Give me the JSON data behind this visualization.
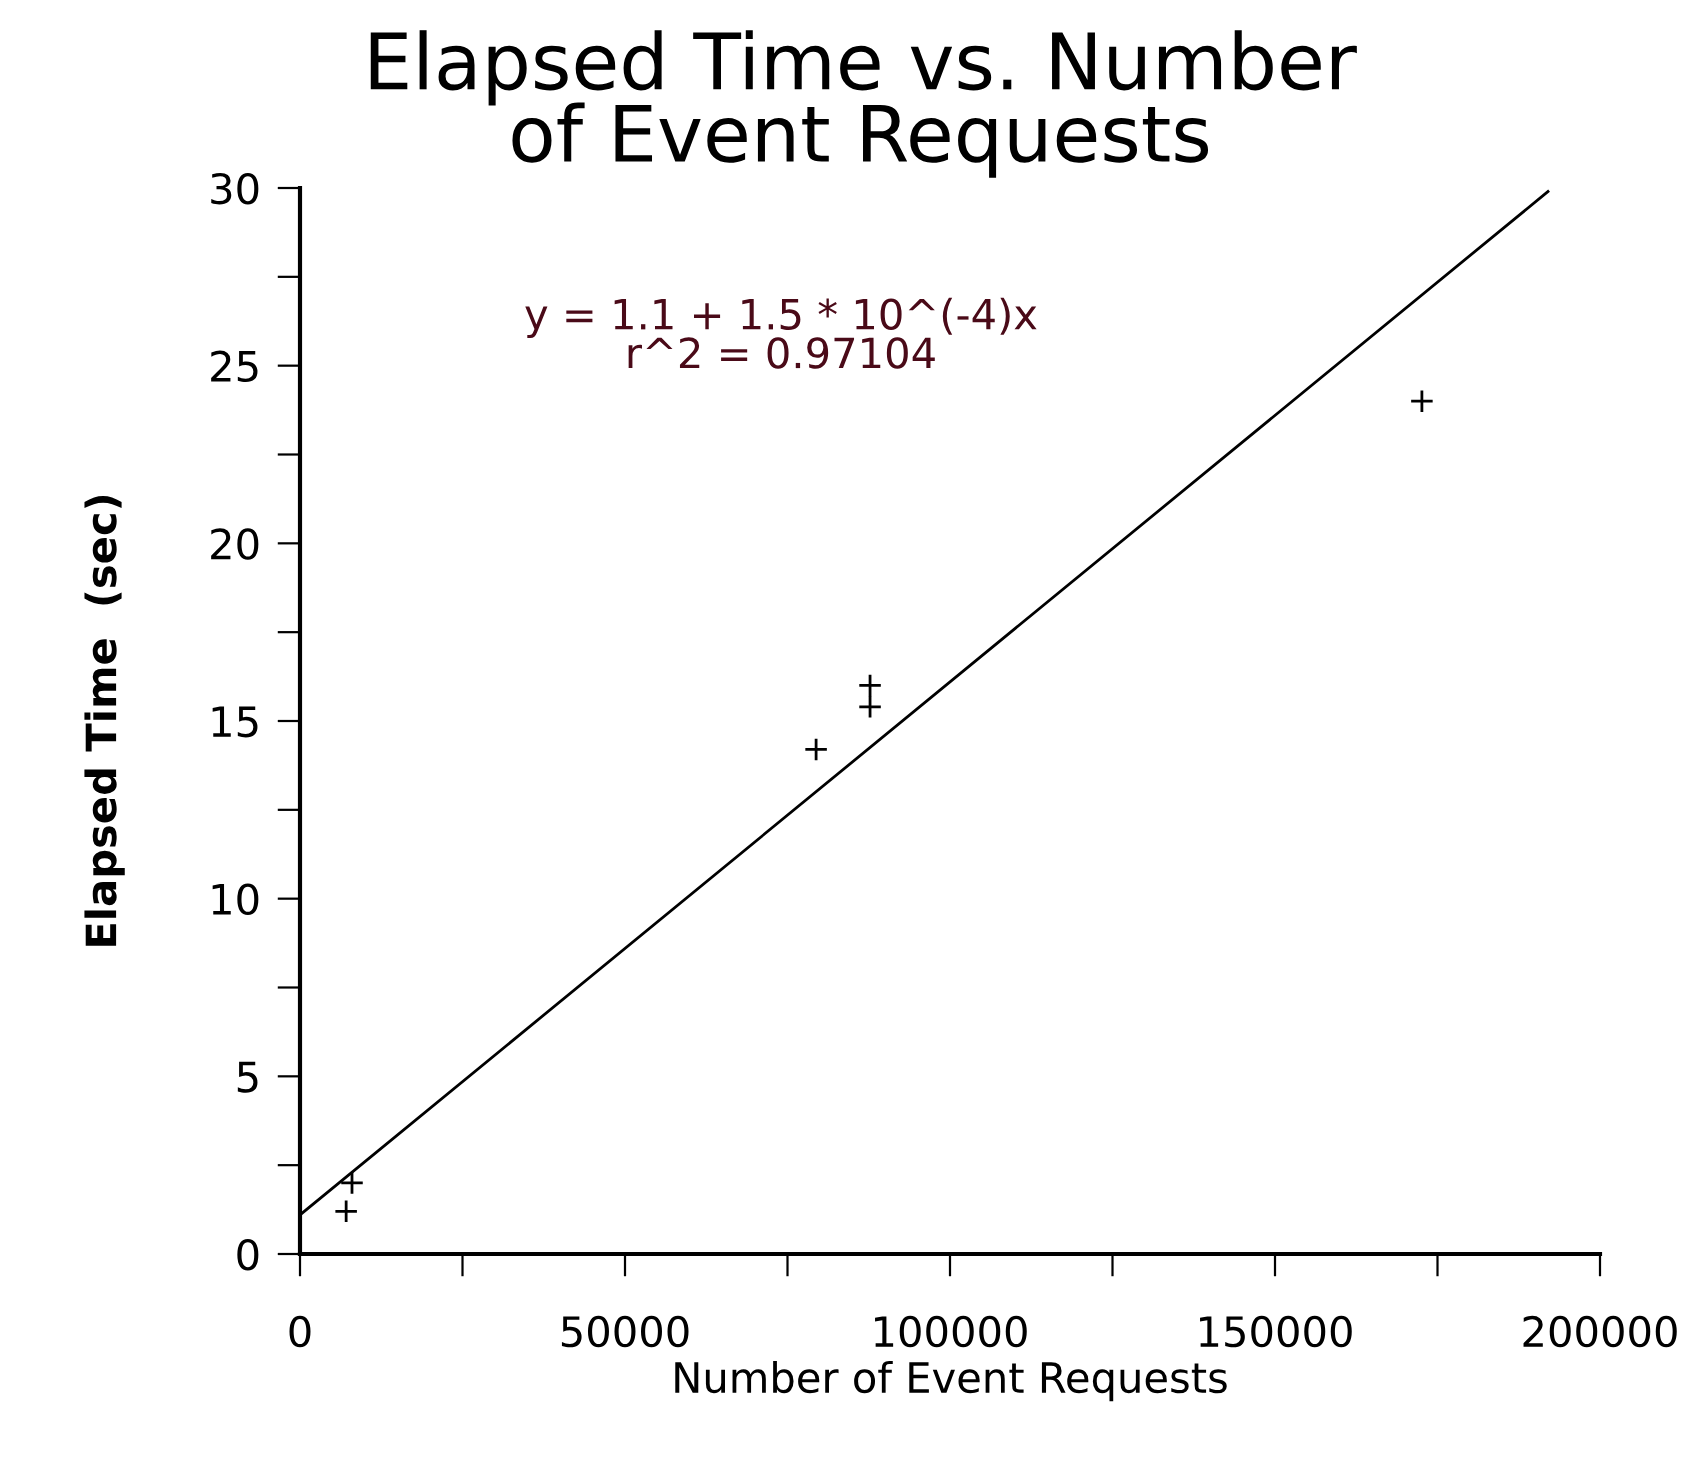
{
  "chart_data": {
    "type": "scatter",
    "title": "Elapsed Time vs. Number\nof Event Requests",
    "xlabel": "Number of Event Requests",
    "ylabel": "Elapsed Time  (sec)",
    "series": [
      {
        "color": "#000000",
        "marker": "cross",
        "x": [
          7100,
          8000,
          79400,
          87700,
          87700,
          172600
        ],
        "values": [
          1.2,
          2.0,
          14.2,
          15.4,
          16.0,
          24.0
        ]
      },
      {
        "type": "line",
        "color": "#000000",
        "marker": "none",
        "line_style": "solid",
        "x": [
          0,
          192000
        ],
        "values": [
          1.1,
          29.9
        ]
      }
    ],
    "annotations": [
      "y = 1.1 + 1.5 * 10^(-4)x\nr^2 = 0.97104"
    ],
    "xlim": [
      0,
      200000
    ],
    "ylim": [
      0,
      30
    ],
    "xticks": [
      0,
      {
        "value": 25000,
        "label": null
      },
      50000,
      {
        "value": 75000,
        "label": null
      },
      100000,
      {
        "value": 125000,
        "label": null
      },
      150000,
      {
        "value": 175000,
        "label": null
      },
      200000
    ],
    "yticks": [
      0,
      {
        "value": 2.5,
        "label": null
      },
      5,
      {
        "value": 7.5,
        "label": null
      },
      10,
      {
        "value": 12.5,
        "label": null
      },
      15,
      {
        "value": 17.5,
        "label": null
      },
      20,
      {
        "value": 22.5,
        "label": null
      },
      25,
      {
        "value": 27.5,
        "label": null
      },
      30
    ],
    "grid": false,
    "legend": false
  }
}
